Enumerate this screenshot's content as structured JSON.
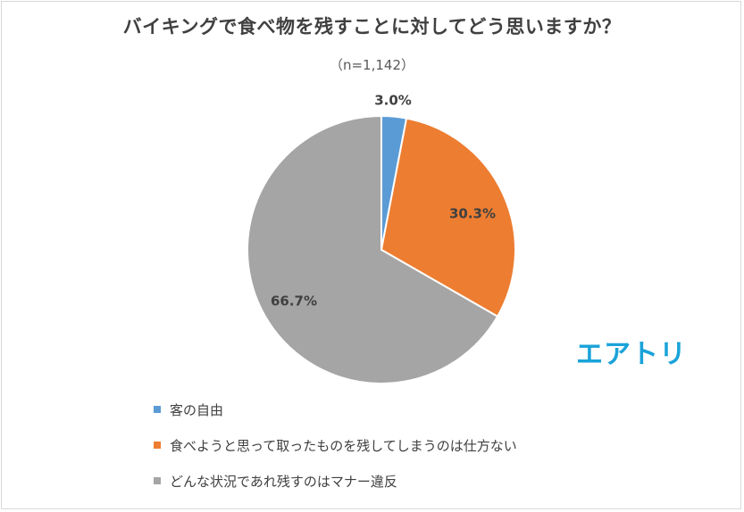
{
  "chart_data": {
    "type": "pie",
    "title": "バイキングで食べ物を残すことに対してどう思いますか？",
    "subtitle": "（n=1,142）",
    "slices": [
      {
        "label": "客の自由",
        "value": 3.0,
        "display": "3.0%",
        "color": "#5b9bd5"
      },
      {
        "label": "食べようと思って取ったものを残してしまうのは仕方ない",
        "value": 30.3,
        "display": "30.3%",
        "color": "#ed7d31"
      },
      {
        "label": "どんな状況であれ残すのはマナー違反",
        "value": 66.7,
        "display": "66.7%",
        "color": "#a5a5a5"
      }
    ],
    "legend_position": "bottom-left"
  },
  "logo_text": "エアトリ"
}
